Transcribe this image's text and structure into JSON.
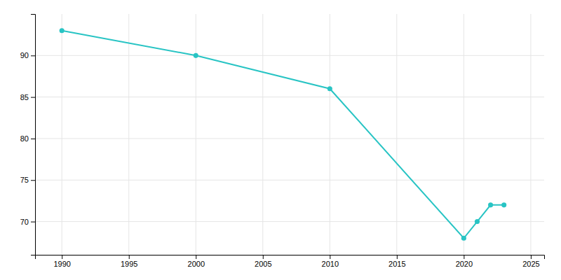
{
  "chart_data": {
    "type": "line",
    "x": [
      1990,
      2000,
      2010,
      2020,
      2021,
      2022,
      2023
    ],
    "values": [
      93,
      90,
      86,
      68,
      70,
      72,
      72
    ],
    "color": "#28C4C4",
    "marker": "circle",
    "xlim": [
      1988,
      2026
    ],
    "ylim": [
      66,
      95
    ],
    "xticks": [
      1990,
      1995,
      2000,
      2005,
      2010,
      2015,
      2020,
      2025
    ],
    "yticks": [
      70,
      75,
      80,
      85,
      90
    ],
    "grid": true
  }
}
